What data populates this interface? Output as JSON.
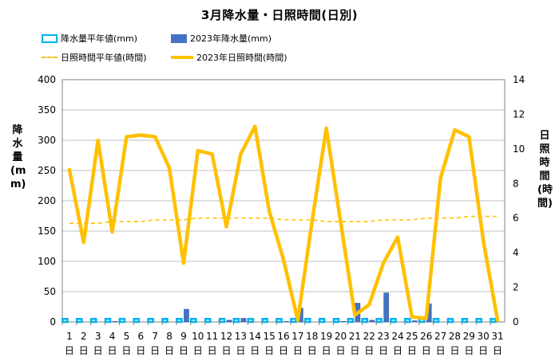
{
  "chart_data": {
    "type": "bar+line",
    "title": "3月降水量・日照時間(日別)",
    "categories": [
      "1",
      "2",
      "3",
      "4",
      "5",
      "6",
      "7",
      "8",
      "9",
      "10",
      "11",
      "12",
      "13",
      "14",
      "15",
      "16",
      "17",
      "18",
      "19",
      "20",
      "21",
      "22",
      "23",
      "24",
      "25",
      "26",
      "27",
      "28",
      "29",
      "30",
      "31"
    ],
    "x_suffix": "日",
    "series": [
      {
        "name": "降水量平年値(mm)",
        "axis": "left",
        "style": "dashed-bar-outline",
        "color": "#00B0F0",
        "values": [
          5,
          5,
          5,
          5,
          5,
          5,
          5,
          5,
          5,
          5,
          5,
          5,
          5,
          5,
          5,
          5,
          5,
          5,
          5,
          5,
          5,
          5,
          5,
          5,
          5,
          5,
          5,
          5,
          5,
          5,
          5
        ]
      },
      {
        "name": "2023年降水量(mm)",
        "axis": "left",
        "style": "bar",
        "color": "#4472C4",
        "values": [
          0,
          0,
          0,
          1,
          0,
          0,
          0,
          0,
          21,
          0,
          0,
          3,
          6,
          0,
          0,
          1,
          23,
          0,
          0,
          1,
          31,
          3,
          48,
          0,
          2,
          30,
          0,
          0,
          0,
          0,
          0
        ]
      },
      {
        "name": "日照時間平年値(時間)",
        "axis": "right",
        "style": "dashed-line",
        "color": "#FFC000",
        "values": [
          5.7,
          5.7,
          5.7,
          5.8,
          5.8,
          5.8,
          5.9,
          5.9,
          5.9,
          6.0,
          6.0,
          6.0,
          6.0,
          6.0,
          6.0,
          5.9,
          5.9,
          5.9,
          5.8,
          5.8,
          5.8,
          5.8,
          5.9,
          5.9,
          5.9,
          6.0,
          6.0,
          6.0,
          6.1,
          6.1,
          6.1
        ]
      },
      {
        "name": "2023年日照時間(時間)",
        "axis": "right",
        "style": "line",
        "color": "#FFC000",
        "values": [
          8.8,
          4.6,
          10.5,
          5.2,
          10.7,
          10.8,
          10.7,
          8.9,
          3.4,
          9.9,
          9.7,
          5.5,
          9.7,
          11.3,
          6.4,
          3.6,
          0.1,
          5.8,
          11.2,
          5.8,
          0.4,
          1.0,
          3.4,
          4.9,
          0.3,
          0.2,
          8.3,
          11.1,
          10.7,
          4.7,
          0.1
        ]
      }
    ],
    "y_left": {
      "label": "降水量(mm)",
      "min": 0,
      "max": 400,
      "ticks": [
        0,
        50,
        100,
        150,
        200,
        250,
        300,
        350,
        400
      ]
    },
    "y_right": {
      "label": "日照時間(時間)",
      "min": 0,
      "max": 14,
      "ticks": [
        0,
        2,
        4,
        6,
        8,
        10,
        12,
        14
      ]
    },
    "grid": "horizontal",
    "legend": "top"
  }
}
